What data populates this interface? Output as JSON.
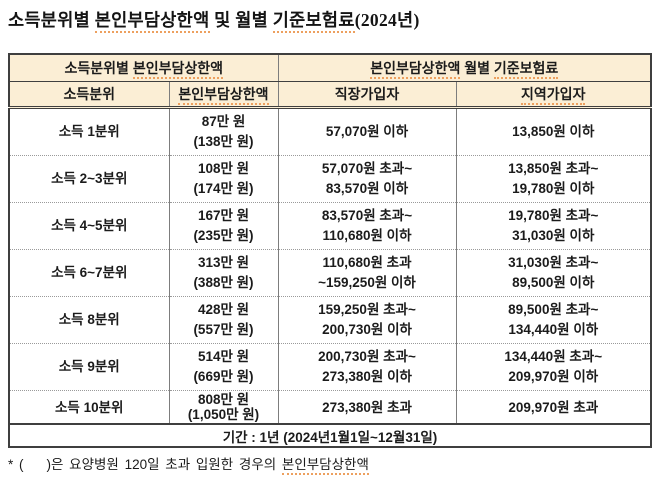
{
  "title": {
    "segments": [
      {
        "text": "소득분위별 ",
        "u": false
      },
      {
        "text": "본인부담상한액",
        "u": true
      },
      {
        "text": " 및 월별 ",
        "u": false
      },
      {
        "text": "기준보험료",
        "u": true
      },
      {
        "text": "(2024년)",
        "u": false
      }
    ]
  },
  "table": {
    "colors": {
      "header_bg": "#fbeed5",
      "border_dark": "#3f3f3f",
      "border_col": "#7d7d7d",
      "row_dotted": "#9a9a9a",
      "underline": "#eda05f"
    },
    "group_headers": [
      {
        "segments": [
          {
            "text": "소득분위별 ",
            "u": false
          },
          {
            "text": "본인부담상한액",
            "u": true
          }
        ]
      },
      {
        "segments": [
          {
            "text": "본인부담상한액",
            "u": true
          },
          {
            "text": " 월별 ",
            "u": false
          },
          {
            "text": "기준보험료",
            "u": true
          }
        ]
      }
    ],
    "column_headers": [
      {
        "segments": [
          {
            "text": "소득분위",
            "u": false
          }
        ]
      },
      {
        "segments": [
          {
            "text": "본인부담상한액",
            "u": true
          }
        ]
      },
      {
        "segments": [
          {
            "text": "직장가입자",
            "u": false
          }
        ]
      },
      {
        "segments": [
          {
            "text": "지역가입자",
            "u": true
          }
        ]
      }
    ],
    "rows": [
      {
        "tier": "소득 1분위",
        "cap": [
          "87만 원",
          "(138만 원)"
        ],
        "employee": [
          "57,070원 이하"
        ],
        "regional": [
          "13,850원 이하"
        ]
      },
      {
        "tier": "소득 2~3분위",
        "cap": [
          "108만 원",
          "(174만 원)"
        ],
        "employee": [
          "57,070원 초과~",
          "83,570원 이하"
        ],
        "regional": [
          "13,850원 초과~",
          "19,780원 이하"
        ]
      },
      {
        "tier": "소득 4~5분위",
        "cap": [
          "167만 원",
          "(235만 원)"
        ],
        "employee": [
          "83,570원 초과~",
          "110,680원 이하"
        ],
        "regional": [
          "19,780원 초과~",
          "31,030원 이하"
        ]
      },
      {
        "tier": "소득 6~7분위",
        "cap": [
          "313만 원",
          "(388만 원)"
        ],
        "employee": [
          "110,680원 초과",
          "~159,250원 이하"
        ],
        "regional": [
          "31,030원 초과~",
          "89,500원 이하"
        ]
      },
      {
        "tier": "소득 8분위",
        "cap": [
          "428만 원",
          "(557만 원)"
        ],
        "employee": [
          "159,250원 초과~",
          "200,730원 이하"
        ],
        "regional": [
          "89,500원 초과~",
          "134,440원 이하"
        ]
      },
      {
        "tier": "소득 9분위",
        "cap": [
          "514만 원",
          "(669만 원)"
        ],
        "employee": [
          "200,730원 초과~",
          "273,380원 이하"
        ],
        "regional": [
          "134,440원 초과~",
          "209,970원 이하"
        ]
      },
      {
        "tier": "소득 10분위",
        "cap": [
          "808만 원",
          "(1,050만 원)"
        ],
        "employee": [
          "273,380원 초과"
        ],
        "regional": [
          "209,970원 초과"
        ]
      }
    ],
    "footer": {
      "period": "기간 : 1년 (2024년1월1일~12월31일)"
    }
  },
  "footnote": {
    "segments": [
      {
        "text": "* (    )은 요양병원 120일 초과 입원한 경우의 ",
        "u": false
      },
      {
        "text": "본인부담상한액",
        "u": true
      }
    ]
  }
}
